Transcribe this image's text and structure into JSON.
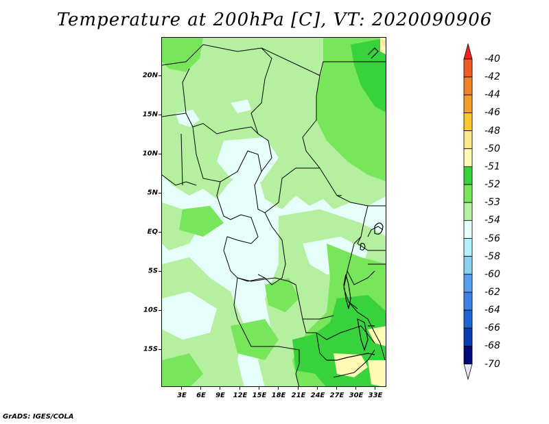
{
  "title": "Temperature at 200hPa [C], VT: 2020090906",
  "footer": "GrADS: IGES/COLA",
  "map": {
    "lat_labels": [
      "20N",
      "15N",
      "10N",
      "5N",
      "EQ",
      "5S",
      "10S",
      "15S"
    ],
    "lon_labels": [
      "3E",
      "6E",
      "9E",
      "12E",
      "15E",
      "18E",
      "21E",
      "24E",
      "27E",
      "30E",
      "33E"
    ]
  },
  "legend": {
    "labels": [
      "-40",
      "-42",
      "-44",
      "-46",
      "-48",
      "-50",
      "-51",
      "-52",
      "-53",
      "-54",
      "-56",
      "-58",
      "-60",
      "-62",
      "-64",
      "-66",
      "-68",
      "-70"
    ],
    "colors": [
      "#fa3c3c",
      "#f05a28",
      "#f08228",
      "#f0a028",
      "#fac832",
      "#fae68c",
      "#fffab4",
      "#37d23c",
      "#78e65a",
      "#b4f0a0",
      "#e6fffa",
      "#b4f0fa",
      "#8cd2f0",
      "#5aa0f0",
      "#3c82e6",
      "#1e64d2",
      "#0a3cb4",
      "#000a78"
    ],
    "over_color": "#ff1e1e",
    "under_color": "#e6e6fa"
  }
}
